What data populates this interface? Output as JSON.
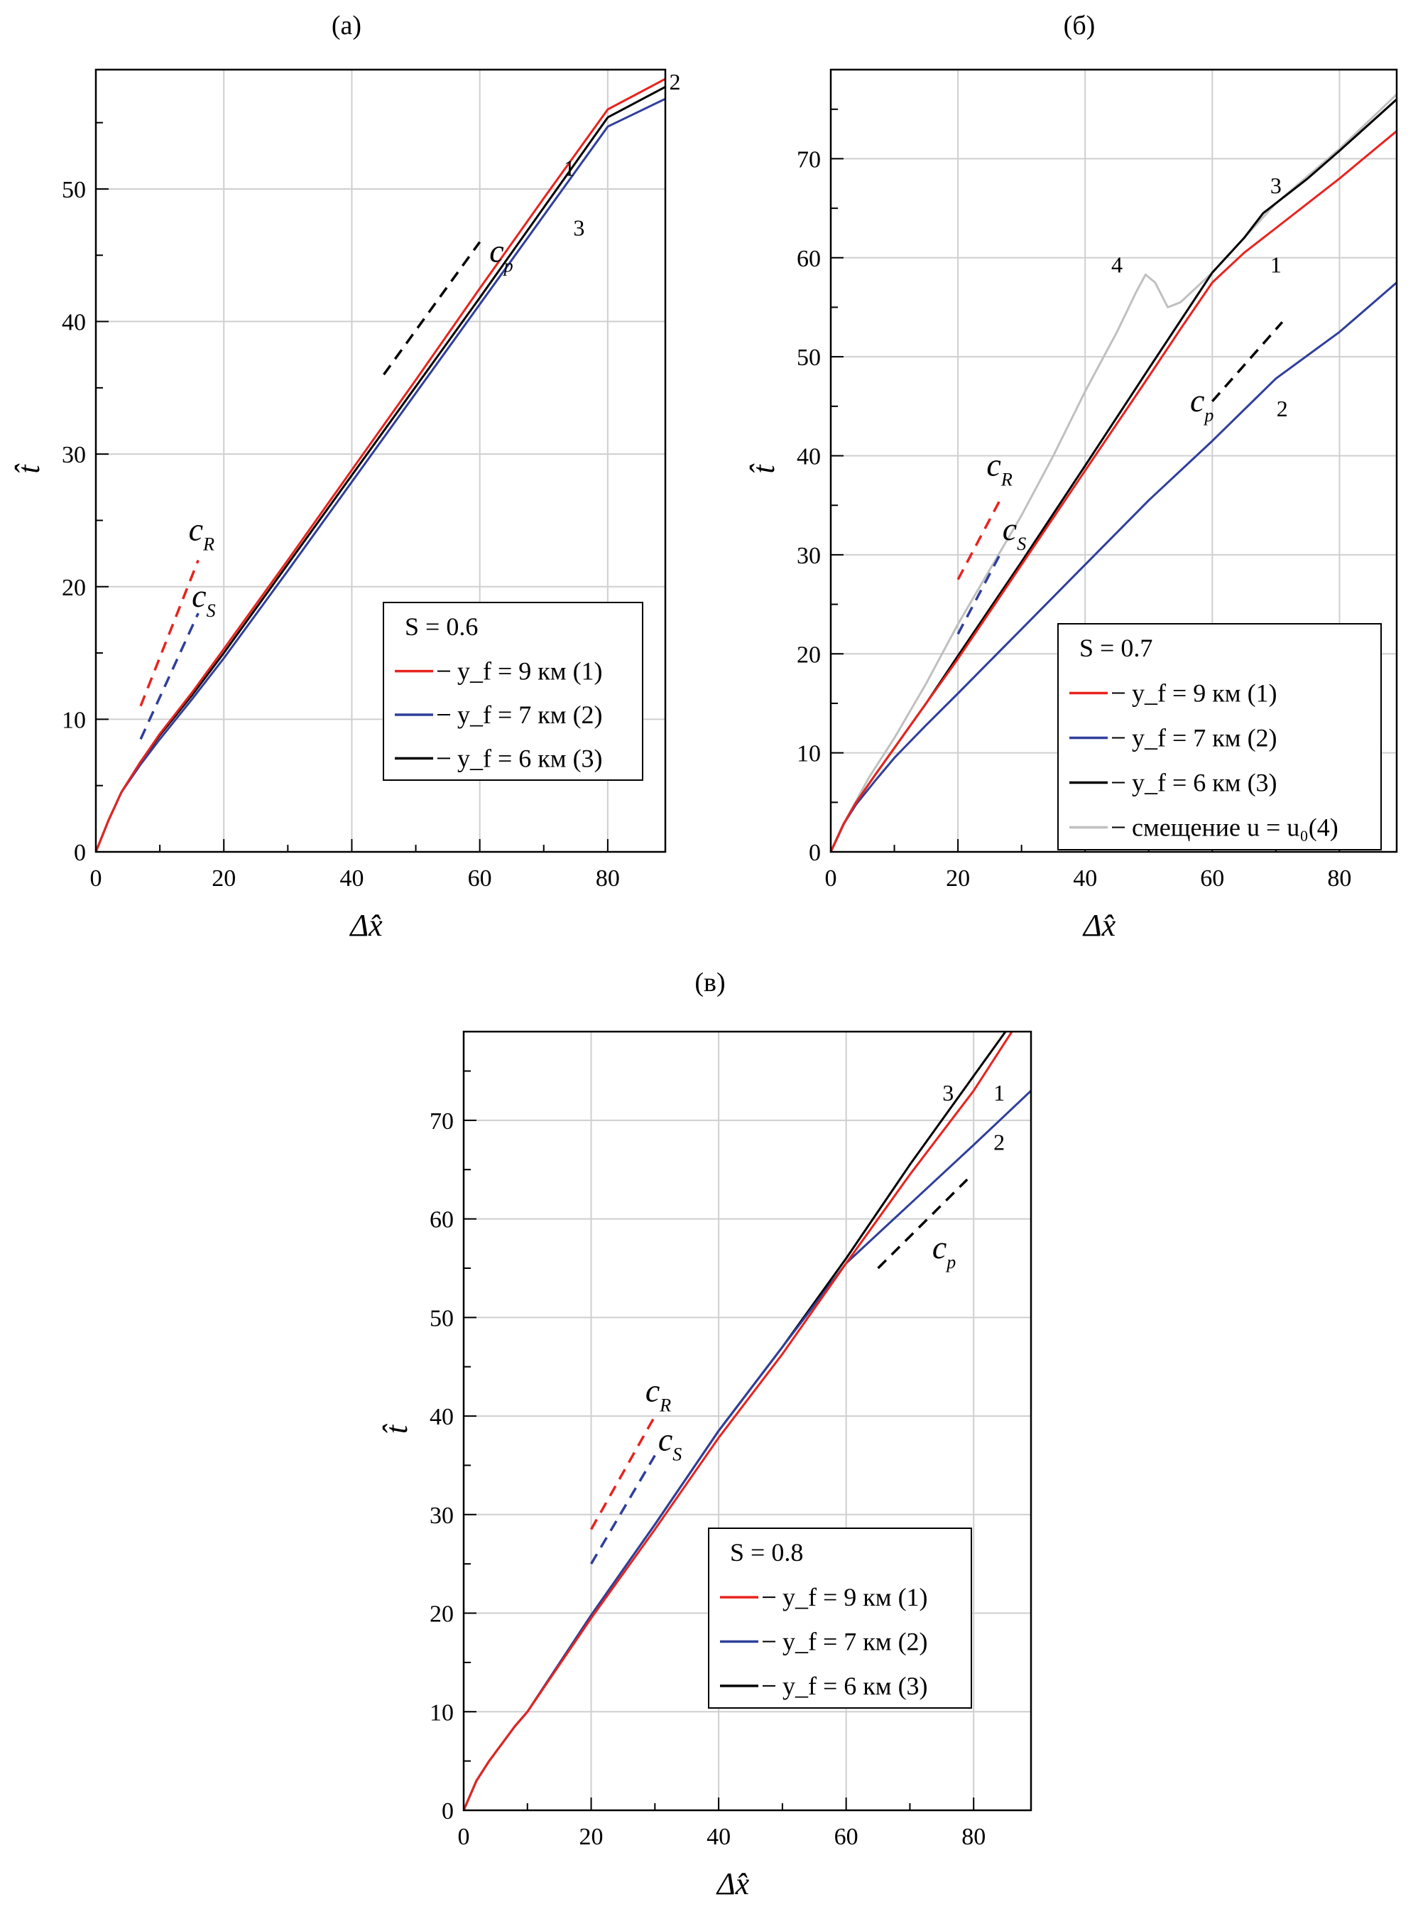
{
  "chart_data": [
    {
      "id": "a",
      "type": "line",
      "panel_label": "(а)",
      "xlabel": "Δx̂",
      "ylabel": "t̂",
      "xlim": [
        0,
        89
      ],
      "ylim": [
        0,
        59
      ],
      "xticks": [
        0,
        20,
        40,
        60,
        80
      ],
      "yticks": [
        0,
        10,
        20,
        30,
        40,
        50
      ],
      "grid": true,
      "legend_placement": "lower-right",
      "legend_title": "S = 0.6",
      "series": [
        {
          "name": "y_f = 9 км (1)",
          "num": "1",
          "color": "#e8231e",
          "x": [
            0,
            2,
            4,
            7,
            10,
            15,
            20,
            30,
            40,
            50,
            60,
            70,
            80,
            89
          ],
          "y": [
            0,
            2.4,
            4.5,
            6.8,
            8.9,
            12.0,
            15.3,
            22.0,
            28.8,
            35.6,
            42.5,
            49.3,
            56.0,
            58.3
          ]
        },
        {
          "name": "y_f = 7 км (2)",
          "num": "2",
          "color": "#2f3f9b",
          "x": [
            0,
            2,
            4,
            7,
            10,
            15,
            20,
            30,
            40,
            50,
            60,
            70,
            80,
            89
          ],
          "y": [
            0,
            2.4,
            4.5,
            6.6,
            8.5,
            11.5,
            14.6,
            21.2,
            27.9,
            34.6,
            41.3,
            48.0,
            54.7,
            56.8
          ]
        },
        {
          "name": "y_f = 6 км (3)",
          "num": "3",
          "color": "#000000",
          "x": [
            0,
            2,
            4,
            7,
            10,
            15,
            20,
            30,
            40,
            50,
            60,
            70,
            80,
            89
          ],
          "y": [
            0,
            2.4,
            4.5,
            6.8,
            8.8,
            11.8,
            15.0,
            21.7,
            28.4,
            35.1,
            41.8,
            48.6,
            55.4,
            57.7
          ]
        }
      ],
      "curve_labels": [
        {
          "num": "1",
          "x": 74,
          "y": 51
        },
        {
          "num": "2",
          "x": 90.5,
          "y": 57.5
        },
        {
          "num": "3",
          "x": 75.5,
          "y": 46.5
        }
      ],
      "annotations": [
        {
          "text": "c",
          "sub": "R",
          "color": "#e8231e",
          "x1": 7,
          "y1": 11,
          "x2": 16,
          "y2": 22,
          "tx": 14.5,
          "ty": 23.5
        },
        {
          "text": "c",
          "sub": "S",
          "color": "#2f3f9b",
          "x1": 7,
          "y1": 8.5,
          "x2": 16,
          "y2": 18,
          "tx": 15,
          "ty": 18.5
        },
        {
          "text": "c",
          "sub": "p",
          "color": "#000000",
          "x1": 45,
          "y1": 36,
          "x2": 60,
          "y2": 46,
          "tx": 61.5,
          "ty": 44.5
        }
      ]
    },
    {
      "id": "b",
      "type": "line",
      "panel_label": "(б)",
      "xlabel": "Δx̂",
      "ylabel": "t̂",
      "xlim": [
        0,
        89
      ],
      "ylim": [
        0,
        79
      ],
      "xticks": [
        0,
        20,
        40,
        60,
        80
      ],
      "yticks": [
        0,
        10,
        20,
        30,
        40,
        50,
        60,
        70
      ],
      "grid": true,
      "legend_placement": "lower-right",
      "legend_title": "S = 0.7",
      "series": [
        {
          "name": "y_f = 9 км (1)",
          "num": "1",
          "color": "#e8231e",
          "x": [
            0,
            2,
            4,
            7,
            10,
            15,
            20,
            30,
            40,
            50,
            55,
            60,
            65,
            70,
            80,
            89
          ],
          "y": [
            0,
            2.8,
            5.0,
            7.8,
            10.5,
            15.0,
            19.5,
            29.0,
            38.5,
            48.0,
            52.8,
            57.5,
            60.5,
            63.0,
            68.0,
            72.8
          ]
        },
        {
          "name": "y_f = 7 км (2)",
          "num": "2",
          "color": "#2f3f9b",
          "x": [
            0,
            2,
            4,
            7,
            10,
            15,
            20,
            30,
            40,
            50,
            60,
            70,
            80,
            89
          ],
          "y": [
            0,
            2.8,
            4.8,
            7.2,
            9.5,
            12.8,
            16.0,
            22.5,
            29.0,
            35.5,
            41.5,
            47.8,
            52.5,
            57.5
          ]
        },
        {
          "name": "y_f = 6 км (3)",
          "num": "3",
          "color": "#000000",
          "x": [
            0,
            2,
            4,
            7,
            10,
            15,
            20,
            30,
            40,
            50,
            60,
            65,
            68,
            75,
            80,
            89
          ],
          "y": [
            0,
            2.8,
            5.0,
            7.8,
            10.5,
            15.0,
            19.8,
            29.3,
            39.0,
            48.8,
            58.5,
            62.0,
            64.5,
            68.0,
            70.8,
            76.0
          ]
        },
        {
          "name": "смещение u = u₀(4)",
          "num": "4",
          "color": "#c0c0c0",
          "x": [
            0,
            3,
            6,
            10,
            15,
            20,
            25,
            30,
            35,
            40,
            45,
            48,
            49.5,
            51,
            53,
            55,
            60,
            65,
            70,
            80,
            89
          ],
          "y": [
            0,
            4,
            7.5,
            11.5,
            17.0,
            23.0,
            28.5,
            34.0,
            40.0,
            46.5,
            52.5,
            56.5,
            58.3,
            57.5,
            55.0,
            55.5,
            58.5,
            62.0,
            65.5,
            71.0,
            76.5
          ]
        }
      ],
      "curve_labels": [
        {
          "num": "1",
          "x": 70,
          "y": 58.5
        },
        {
          "num": "2",
          "x": 71,
          "y": 44
        },
        {
          "num": "3",
          "x": 70,
          "y": 66.5
        },
        {
          "num": "4",
          "x": 45,
          "y": 58.5
        }
      ],
      "annotations": [
        {
          "text": "c",
          "sub": "R",
          "color": "#e8231e",
          "x1": 20,
          "y1": 27.5,
          "x2": 27,
          "y2": 36,
          "tx": 24.5,
          "ty": 38
        },
        {
          "text": "c",
          "sub": "S",
          "color": "#2f3f9b",
          "x1": 20,
          "y1": 22,
          "x2": 27,
          "y2": 30.5,
          "tx": 27,
          "ty": 31.5
        },
        {
          "text": "c",
          "sub": "p",
          "color": "#000000",
          "x1": 60,
          "y1": 45.5,
          "x2": 71,
          "y2": 53.5,
          "tx": 56.5,
          "ty": 44.5
        }
      ]
    },
    {
      "id": "c",
      "type": "line",
      "panel_label": "(в)",
      "xlabel": "Δx̂",
      "ylabel": "t̂",
      "xlim": [
        0,
        89
      ],
      "ylim": [
        0,
        79
      ],
      "xticks": [
        0,
        20,
        40,
        60,
        80
      ],
      "yticks": [
        0,
        10,
        20,
        30,
        40,
        50,
        60,
        70
      ],
      "grid": true,
      "legend_placement": "lower-right",
      "legend_title": "S = 0.8",
      "series": [
        {
          "name": "y_f = 9 км (1)",
          "num": "1",
          "color": "#e8231e",
          "x": [
            0,
            2,
            4,
            8,
            10,
            20,
            30,
            40,
            50,
            60,
            70,
            80,
            86
          ],
          "y": [
            0,
            3.0,
            5.0,
            8.5,
            10.0,
            19.5,
            28.5,
            37.8,
            46.3,
            55.5,
            64.5,
            73.0,
            79.0
          ]
        },
        {
          "name": "y_f = 7 км (2)",
          "num": "2",
          "color": "#2f3f9b",
          "x": [
            0,
            2,
            4,
            8,
            10,
            20,
            30,
            40,
            50,
            60,
            70,
            80,
            89
          ],
          "y": [
            0,
            3.0,
            5.0,
            8.5,
            10.0,
            19.8,
            29.0,
            38.5,
            47.0,
            55.5,
            61.5,
            67.5,
            73.0
          ]
        },
        {
          "name": "y_f = 6 км (3)",
          "num": "3",
          "color": "#000000",
          "x": [
            0,
            2,
            4,
            8,
            10,
            20,
            30,
            40,
            50,
            60,
            70,
            80,
            85
          ],
          "y": [
            0,
            3.0,
            5.0,
            8.5,
            10.0,
            19.8,
            29.0,
            38.5,
            47.0,
            56.0,
            65.5,
            74.5,
            79.0
          ]
        }
      ],
      "curve_labels": [
        {
          "num": "1",
          "x": 84,
          "y": 72
        },
        {
          "num": "2",
          "x": 84,
          "y": 67
        },
        {
          "num": "3",
          "x": 76,
          "y": 72
        }
      ],
      "annotations": [
        {
          "text": "c",
          "sub": "R",
          "color": "#e8231e",
          "x1": 20,
          "y1": 28.5,
          "x2": 30,
          "y2": 40,
          "tx": 28.5,
          "ty": 41.5
        },
        {
          "text": "c",
          "sub": "S",
          "color": "#2f3f9b",
          "x1": 20,
          "y1": 25,
          "x2": 30,
          "y2": 36,
          "tx": 30.5,
          "ty": 36.5
        },
        {
          "text": "c",
          "sub": "p",
          "color": "#000000",
          "x1": 65,
          "y1": 55,
          "x2": 79,
          "y2": 64,
          "tx": 73.5,
          "ty": 56
        }
      ]
    }
  ]
}
